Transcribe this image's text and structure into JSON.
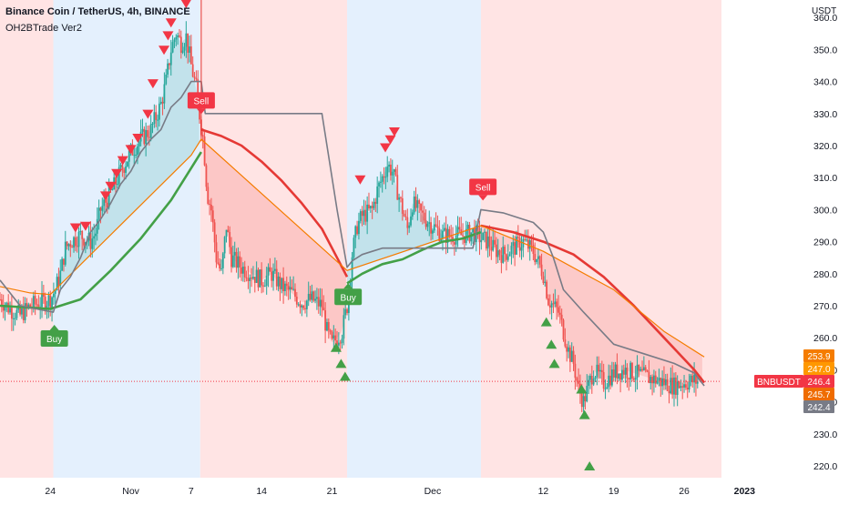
{
  "header": {
    "title": "Binance Coin / TetherUS, 4h, BINANCE",
    "indicator": "OH2BTrade Ver2",
    "currency": "USDT"
  },
  "chart_data": {
    "type": "candlestick",
    "symbol": "BNBUSDT",
    "ylim": [
      215,
      365
    ],
    "y_ticks": [
      220,
      230,
      240,
      250,
      260,
      270,
      280,
      290,
      300,
      310,
      320,
      330,
      340,
      350,
      360
    ],
    "x_labels": [
      {
        "label": "24",
        "day": 24
      },
      {
        "label": "Nov",
        "day": 32
      },
      {
        "label": "7",
        "day": 38
      },
      {
        "label": "14",
        "day": 45
      },
      {
        "label": "21",
        "day": 52
      },
      {
        "label": "Dec",
        "day": 62
      },
      {
        "label": "12",
        "day": 73
      },
      {
        "label": "19",
        "day": 80
      },
      {
        "label": "26",
        "day": 87
      },
      {
        "label": "2023",
        "day": 93
      }
    ],
    "x_range_days": [
      19,
      96
    ],
    "last_data_day": 88.4,
    "price_tags": [
      {
        "value": 253.9,
        "text": "253.9",
        "color": "#f57c00"
      },
      {
        "value": 247.0,
        "text": "247.0",
        "color": "#ff9800"
      },
      {
        "value": 246.4,
        "text": "246.4",
        "color": "#f23645",
        "label": "BNBUSDT"
      },
      {
        "value": 245.7,
        "text": "245.7",
        "color": "#ef6c00"
      },
      {
        "value": 242.4,
        "text": "242.4",
        "color": "#787b86"
      }
    ],
    "trend_zones": [
      {
        "from": 19,
        "to": 24.3,
        "trend": "down",
        "color": "#ffe4e4"
      },
      {
        "from": 24.3,
        "to": 38.9,
        "trend": "up",
        "color": "#e4f0fd"
      },
      {
        "from": 38.9,
        "to": 53.5,
        "trend": "down",
        "color": "#ffe4e4"
      },
      {
        "from": 53.5,
        "to": 66.8,
        "trend": "up",
        "color": "#e4f0fd"
      },
      {
        "from": 66.8,
        "to": 96,
        "trend": "down",
        "color": "#ffe4e4"
      }
    ],
    "close_path": [
      [
        19,
        272
      ],
      [
        20,
        269
      ],
      [
        21,
        267
      ],
      [
        22,
        270
      ],
      [
        23,
        271
      ],
      [
        24,
        272
      ],
      [
        24.5,
        275
      ],
      [
        25,
        280
      ],
      [
        25.5,
        288
      ],
      [
        26,
        290
      ],
      [
        27,
        292
      ],
      [
        28,
        290
      ],
      [
        28.5,
        293
      ],
      [
        29,
        300
      ],
      [
        30,
        305
      ],
      [
        31,
        312
      ],
      [
        32,
        318
      ],
      [
        33,
        322
      ],
      [
        34,
        325
      ],
      [
        35,
        333
      ],
      [
        35.5,
        340
      ],
      [
        36,
        350
      ],
      [
        36.5,
        355
      ],
      [
        37,
        352
      ],
      [
        37.5,
        354
      ],
      [
        38,
        345
      ],
      [
        38.5,
        338
      ],
      [
        38.9,
        328
      ],
      [
        39.2,
        322
      ],
      [
        39.6,
        305
      ],
      [
        40,
        300
      ],
      [
        40.5,
        285
      ],
      [
        41,
        280
      ],
      [
        41.5,
        295
      ],
      [
        42,
        285
      ],
      [
        43,
        282
      ],
      [
        44,
        280
      ],
      [
        45,
        278
      ],
      [
        46,
        280
      ],
      [
        47,
        276
      ],
      [
        48,
        274
      ],
      [
        49,
        271
      ],
      [
        50,
        272
      ],
      [
        51,
        270
      ],
      [
        51.5,
        262
      ],
      [
        52,
        258
      ],
      [
        52.5,
        260
      ],
      [
        53,
        262
      ],
      [
        53.5,
        270
      ],
      [
        54,
        286
      ],
      [
        54.5,
        295
      ],
      [
        55,
        298
      ],
      [
        56,
        300
      ],
      [
        56.5,
        306
      ],
      [
        57,
        310
      ],
      [
        57.5,
        314
      ],
      [
        58,
        312
      ],
      [
        59,
        300
      ],
      [
        59.5,
        294
      ],
      [
        60,
        302
      ],
      [
        61,
        298
      ],
      [
        62,
        295
      ],
      [
        63,
        292
      ],
      [
        64,
        292
      ],
      [
        65,
        292
      ],
      [
        66,
        293
      ],
      [
        66.8,
        291
      ],
      [
        67.5,
        290
      ],
      [
        68,
        288
      ],
      [
        69,
        286
      ],
      [
        70,
        288
      ],
      [
        71,
        290
      ],
      [
        72,
        287
      ],
      [
        73,
        280
      ],
      [
        73.5,
        272
      ],
      [
        74,
        270
      ],
      [
        74.5,
        268
      ],
      [
        75,
        262
      ],
      [
        75.5,
        256
      ],
      [
        76,
        252
      ],
      [
        76.5,
        244
      ],
      [
        77,
        240
      ],
      [
        77.5,
        245
      ],
      [
        78,
        250
      ],
      [
        78.5,
        248
      ],
      [
        79,
        246
      ],
      [
        80,
        249
      ],
      [
        81,
        250
      ],
      [
        82,
        249
      ],
      [
        83,
        248
      ],
      [
        84,
        247
      ],
      [
        85,
        246
      ],
      [
        86,
        245
      ],
      [
        87,
        246
      ],
      [
        88,
        246.5
      ],
      [
        88.4,
        246.4
      ]
    ],
    "series": [
      {
        "name": "",
        "color": "#43a047",
        "points": [
          [
            19,
            270
          ],
          [
            24,
            269
          ],
          [
            27,
            272
          ],
          [
            30,
            281
          ],
          [
            33,
            291
          ],
          [
            36,
            303
          ],
          [
            38,
            313
          ],
          [
            39,
            318
          ]
        ]
      },
      {
        "name": "",
        "color": "#e53935",
        "points": [
          [
            39,
            325
          ],
          [
            41,
            323
          ],
          [
            43,
            320
          ],
          [
            45,
            315
          ],
          [
            47,
            309
          ],
          [
            49,
            302
          ],
          [
            51,
            294
          ],
          [
            52.5,
            285
          ],
          [
            53.5,
            279
          ]
        ]
      },
      {
        "name": "",
        "color": "#43a047",
        "points": [
          [
            53.5,
            277
          ],
          [
            55,
            280
          ],
          [
            57,
            283
          ],
          [
            59,
            284.5
          ],
          [
            61,
            287.5
          ],
          [
            63,
            290
          ],
          [
            65,
            291
          ],
          [
            66.8,
            293
          ]
        ]
      },
      {
        "name": "",
        "color": "#e53935",
        "points": [
          [
            66.8,
            295
          ],
          [
            70,
            293
          ],
          [
            73,
            290
          ],
          [
            76,
            286
          ],
          [
            79,
            279
          ],
          [
            82,
            270
          ],
          [
            85,
            260
          ],
          [
            88,
            250
          ],
          [
            89,
            246
          ]
        ]
      },
      {
        "name": "",
        "color": "#f57c00",
        "points": [
          [
            19,
            276
          ],
          [
            22,
            274
          ],
          [
            24,
            273.5
          ],
          [
            38,
            317
          ],
          [
            39,
            322
          ],
          [
            53.5,
            281
          ],
          [
            66.8,
            295
          ],
          [
            73,
            287
          ],
          [
            80,
            275
          ],
          [
            85,
            262
          ],
          [
            89,
            254
          ]
        ]
      },
      {
        "name": "",
        "color": "#787b86",
        "points": [
          [
            19,
            278
          ],
          [
            20,
            274
          ],
          [
            21,
            270
          ],
          [
            24.3,
            268
          ],
          [
            25,
            275
          ],
          [
            26,
            279
          ],
          [
            27,
            285
          ],
          [
            28,
            293
          ],
          [
            29,
            297
          ],
          [
            30,
            302
          ],
          [
            31,
            308
          ],
          [
            32,
            312
          ],
          [
            33,
            318
          ],
          [
            34,
            322
          ],
          [
            35,
            325
          ],
          [
            36,
            332
          ],
          [
            37,
            335
          ],
          [
            38,
            340
          ],
          [
            39,
            340
          ],
          [
            39.4,
            330
          ],
          [
            48,
            330
          ],
          [
            49,
            330
          ],
          [
            50,
            330
          ],
          [
            51,
            330
          ],
          [
            52.5,
            300
          ],
          [
            53.5,
            282
          ],
          [
            54,
            284
          ],
          [
            55,
            286
          ],
          [
            56,
            287
          ],
          [
            57,
            288
          ],
          [
            59,
            288
          ],
          [
            62,
            288
          ],
          [
            64,
            288
          ],
          [
            66,
            288
          ],
          [
            66.8,
            300
          ],
          [
            69,
            299
          ],
          [
            71,
            297
          ],
          [
            72,
            296
          ],
          [
            73,
            293
          ],
          [
            74,
            285
          ],
          [
            75,
            275
          ],
          [
            77,
            268
          ],
          [
            80,
            258
          ],
          [
            83,
            255
          ],
          [
            86,
            252
          ],
          [
            88,
            249
          ],
          [
            89,
            245
          ]
        ]
      }
    ],
    "ribbon_fill": [
      {
        "from": 24.3,
        "to": 38.9,
        "color": "#26a69a",
        "opacity": 0.18
      },
      {
        "from": 38.9,
        "to": 53.5,
        "color": "#ef5350",
        "opacity": 0.2
      },
      {
        "from": 53.5,
        "to": 66.8,
        "color": "#26a69a",
        "opacity": 0.18
      },
      {
        "from": 66.8,
        "to": 89,
        "color": "#ef5350",
        "opacity": 0.18
      }
    ],
    "signals": [
      {
        "day": 24.4,
        "price": 268,
        "side": "buy",
        "label": "Buy"
      },
      {
        "day": 39.0,
        "price": 327,
        "side": "sell",
        "label": "Sell"
      },
      {
        "day": 53.6,
        "price": 281,
        "side": "buy",
        "label": "Buy"
      },
      {
        "day": 67.0,
        "price": 300,
        "side": "sell",
        "label": "Sell"
      }
    ],
    "arrows_down": [
      [
        26.5,
        294
      ],
      [
        27.5,
        294.5
      ],
      [
        29.5,
        304
      ],
      [
        30,
        307
      ],
      [
        30.6,
        311
      ],
      [
        31.2,
        315
      ],
      [
        32,
        318.5
      ],
      [
        32.7,
        322
      ],
      [
        33.7,
        329.5
      ],
      [
        34.2,
        339
      ],
      [
        35.3,
        349.5
      ],
      [
        35.7,
        354
      ],
      [
        36,
        358
      ],
      [
        37.5,
        364
      ],
      [
        54.8,
        309
      ],
      [
        57.3,
        319
      ],
      [
        57.8,
        321.5
      ],
      [
        58.2,
        324
      ]
    ],
    "arrows_up": [
      [
        52.4,
        257
      ],
      [
        52.9,
        252
      ],
      [
        53.3,
        248
      ],
      [
        73.3,
        265
      ],
      [
        73.8,
        258
      ],
      [
        74.1,
        252
      ],
      [
        76.8,
        244
      ],
      [
        77.1,
        236
      ],
      [
        77.6,
        220
      ]
    ]
  }
}
